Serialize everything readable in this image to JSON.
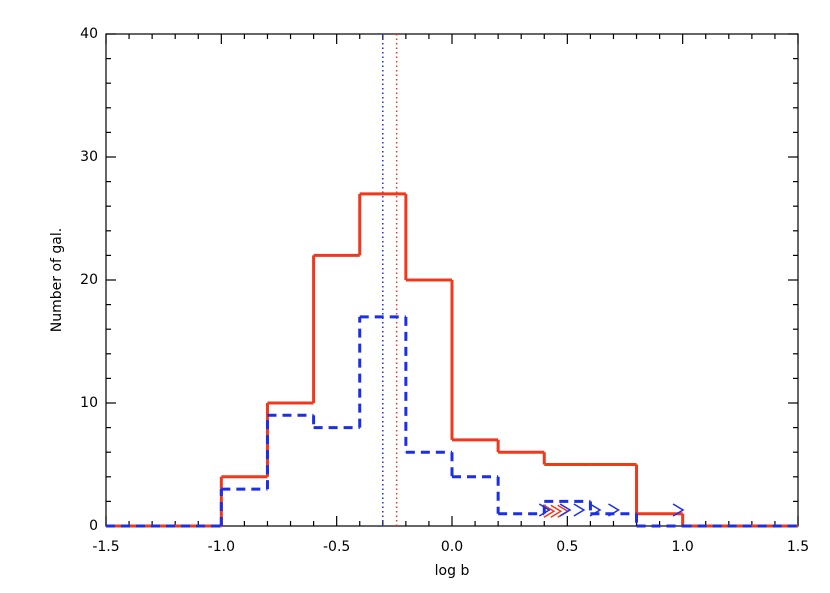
{
  "chart_data": {
    "type": "histogram",
    "xlabel": "log b",
    "ylabel": "Number of gal.",
    "bins": [
      -1.5,
      -1.0,
      -0.8,
      -0.6,
      -0.4,
      -0.2,
      0.0,
      0.2,
      0.4,
      0.6,
      0.8,
      1.0,
      1.5
    ],
    "series": [
      {
        "color": "#f0381c",
        "linestyle": "solid",
        "values": [
          0,
          4,
          10,
          22,
          27,
          20,
          7,
          6,
          5,
          5,
          1,
          0
        ]
      },
      {
        "color": "#1c2ee6",
        "linestyle": "dashed",
        "values": [
          0,
          3,
          9,
          8,
          17,
          6,
          4,
          1,
          2,
          1,
          0,
          0
        ]
      }
    ],
    "vlines": [
      {
        "x": -0.3,
        "color": "#1c2ee6"
      },
      {
        "x": -0.24,
        "color": "#f0381c"
      }
    ],
    "lower_limits": [
      {
        "color": "#f0381c",
        "x": [
          0.42,
          0.45,
          0.48
        ],
        "y": [
          1.2,
          1.2,
          1.2
        ]
      },
      {
        "color": "#1c2ee6",
        "x": [
          0.4,
          0.49,
          0.55,
          0.62,
          0.7,
          0.98
        ],
        "y": [
          1.3,
          1.3,
          1.3,
          1.3,
          1.3,
          1.3
        ]
      }
    ],
    "xlim": [
      -1.5,
      1.5
    ],
    "ylim": [
      0,
      40
    ],
    "xticks": [
      {
        "value": -1.5,
        "label": "-1.5"
      },
      {
        "value": -1.0,
        "label": "-1.0"
      },
      {
        "value": -0.5,
        "label": "-0.5"
      },
      {
        "value": 0.0,
        "label": "0.0"
      },
      {
        "value": 0.5,
        "label": "0.5"
      },
      {
        "value": 1.0,
        "label": "1.0"
      },
      {
        "value": 1.5,
        "label": "1.5"
      }
    ],
    "yticks": [
      0,
      10,
      20,
      30,
      40
    ]
  }
}
